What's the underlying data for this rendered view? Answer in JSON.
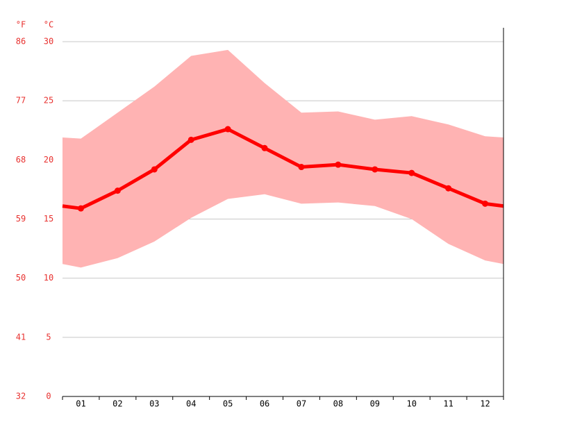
{
  "chart_data": {
    "type": "climate",
    "ylabel": "°C",
    "y2label": "°F",
    "categories": [
      "01",
      "02",
      "03",
      "04",
      "05",
      "06",
      "07",
      "08",
      "09",
      "10",
      "11",
      "12"
    ],
    "line": {
      "color": "#ff0000",
      "values": [
        15.9,
        17.4,
        19.2,
        21.7,
        22.6,
        21.0,
        19.4,
        19.6,
        19.2,
        18.9,
        17.6,
        16.3
      ]
    },
    "band": {
      "color": "#ffb3b3",
      "high": [
        21.8,
        24.0,
        26.2,
        28.8,
        29.3,
        26.5,
        24.0,
        24.1,
        23.4,
        23.7,
        23.0,
        22.0
      ],
      "low": [
        10.9,
        11.7,
        13.1,
        15.1,
        16.7,
        17.1,
        16.3,
        16.4,
        16.1,
        15.0,
        12.9,
        11.5
      ]
    },
    "ylim": [
      0,
      30
    ],
    "yticks": [
      0,
      5,
      10,
      15,
      20,
      25,
      30
    ],
    "y2lim": [
      32,
      86
    ],
    "y2ticks": [
      32,
      41,
      50,
      59,
      68,
      77,
      86
    ],
    "grid": true
  }
}
